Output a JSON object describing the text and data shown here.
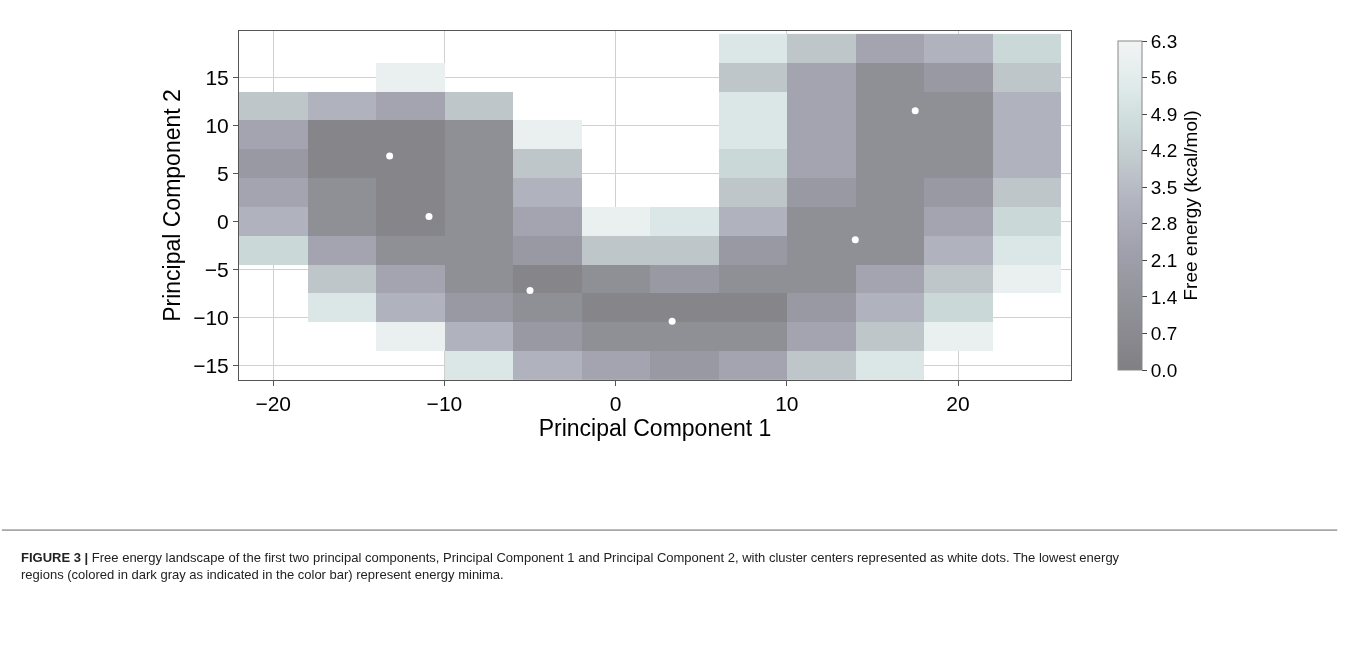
{
  "chart_data": {
    "type": "heatmap",
    "x": [
      -20,
      -16,
      -12,
      -8,
      -4,
      0,
      4,
      8,
      12,
      16,
      20,
      24
    ],
    "y": [
      18,
      15,
      12,
      9,
      6,
      3,
      0,
      -3,
      -6,
      -9,
      -12,
      -15
    ],
    "cells": [
      [
        null,
        null,
        null,
        null,
        null,
        null,
        null,
        5.25,
        3.85,
        2.45,
        3.15,
        4.55
      ],
      [
        null,
        null,
        5.95,
        null,
        null,
        null,
        null,
        3.85,
        2.45,
        1.05,
        1.75,
        3.85
      ],
      [
        3.85,
        3.15,
        2.45,
        3.85,
        null,
        null,
        null,
        5.25,
        2.45,
        1.05,
        1.05,
        3.15
      ],
      [
        2.45,
        0.35,
        0.35,
        1.05,
        5.95,
        null,
        null,
        5.25,
        2.45,
        1.05,
        1.05,
        3.15
      ],
      [
        1.75,
        0.35,
        0.35,
        1.05,
        3.85,
        null,
        null,
        4.55,
        2.45,
        1.05,
        1.05,
        3.15
      ],
      [
        2.45,
        1.05,
        0.35,
        1.05,
        3.15,
        null,
        null,
        3.85,
        1.75,
        1.05,
        1.75,
        3.85
      ],
      [
        3.15,
        1.05,
        0.35,
        1.05,
        2.45,
        5.95,
        5.25,
        3.15,
        1.05,
        1.05,
        2.45,
        4.55
      ],
      [
        4.55,
        2.45,
        1.05,
        1.05,
        1.75,
        3.85,
        3.85,
        1.75,
        1.05,
        1.05,
        3.15,
        5.25
      ],
      [
        null,
        3.85,
        2.45,
        1.05,
        0.35,
        1.05,
        1.75,
        1.05,
        1.05,
        2.45,
        3.85,
        5.95
      ],
      [
        null,
        5.25,
        3.15,
        1.75,
        1.05,
        0.35,
        0.35,
        0.35,
        1.75,
        3.15,
        4.55,
        null
      ],
      [
        null,
        null,
        5.95,
        3.15,
        1.75,
        1.05,
        1.05,
        1.05,
        2.45,
        3.85,
        5.95,
        null
      ],
      [
        null,
        null,
        null,
        5.25,
        3.15,
        2.45,
        1.75,
        2.45,
        3.85,
        5.25,
        null,
        null
      ]
    ],
    "colors": [
      "#808084",
      "#8b8b91",
      "#96969f",
      "#a1a2ae",
      "#b0b2be",
      "#c0c8cc",
      "#cedcdc",
      "#e1ebeb",
      "#f2f4f4"
    ],
    "clim": [
      0,
      6.3
    ],
    "cticks": [
      {
        "value": 0,
        "label": "0.0"
      },
      0.7,
      1.4,
      2.1,
      2.8,
      3.5,
      4.2,
      4.9,
      5.6,
      6.3
    ],
    "clabel": "Free energy (kcal/mol)",
    "xlabel": "Principal Component 1",
    "ylabel": "Principal Component 2",
    "xlim": [
      -22,
      26.6
    ],
    "ylim": [
      -16.5,
      19.8
    ],
    "xticks": [
      -20,
      -10,
      0,
      10,
      20
    ],
    "yticks": [
      -15,
      -10,
      -5,
      0,
      5,
      10,
      15
    ],
    "grid": true,
    "series": [
      {
        "type": "scatter",
        "x": [
          -13.2,
          -10.9,
          -5.0,
          3.3,
          14.0,
          17.5
        ],
        "values": [
          6.8,
          0.5,
          -7.2,
          -10.4,
          -1.9,
          11.5
        ],
        "color": "#ffffff",
        "marker": "circle"
      }
    ],
    "annotations": [
      "FIGURE 3 | Free energy landscape of the first two principal components, Principal Component 1 and Principal Component 2, with cluster centers represented as white dots. The lowest energy regions (colored in dark gray as indicated in the color bar) represent energy minima."
    ]
  }
}
